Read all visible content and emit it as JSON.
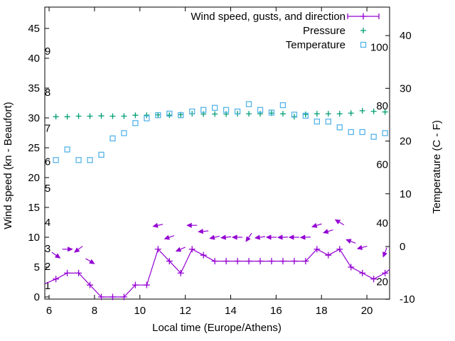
{
  "figure": {
    "background": "#ffffff",
    "axis_color": "#000000",
    "text_color": "#000000"
  },
  "chart_data": {
    "type": "line",
    "title": "",
    "xlabel": "Local time (Europe/Athens)",
    "ylabel_left": "Wind speed (kn - Beaufort)",
    "ylabel_right": "Temperature (C - F)",
    "grid": false,
    "legend_position": "top-right-inside",
    "xlim": [
      5.81,
      21.0
    ],
    "ylim_left": [
      -0.36,
      48.57
    ],
    "ylim_right": [
      -9.97,
      45.4
    ],
    "x_ticks": [
      6,
      8,
      10,
      12,
      14,
      16,
      18,
      20
    ],
    "y_ticks_left": [
      0,
      5,
      10,
      15,
      20,
      25,
      30,
      35,
      40,
      45
    ],
    "y_ticks_right": [
      -10,
      0,
      10,
      20,
      30,
      40
    ],
    "beaufort_scale_labels": [
      {
        "label": "1",
        "kn": 1.9
      },
      {
        "label": "2",
        "kn": 5.1
      },
      {
        "label": "3",
        "kn": 8.1
      },
      {
        "label": "4",
        "kn": 12.5
      },
      {
        "label": "5",
        "kn": 18.2
      },
      {
        "label": "6",
        "kn": 22.7
      },
      {
        "label": "7",
        "kn": 28.3
      },
      {
        "label": "8",
        "kn": 34.3
      },
      {
        "label": "9",
        "kn": 41.2
      }
    ],
    "fahrenheit_scale_labels": [
      {
        "label": "20",
        "f": 20
      },
      {
        "label": "40",
        "f": 40
      },
      {
        "label": "60",
        "f": 60
      },
      {
        "label": "80",
        "f": 80
      },
      {
        "label": "100",
        "f": 100
      }
    ],
    "legend": [
      {
        "label": "Wind speed, gusts, and direction",
        "color": "#9400D3",
        "sample": "errorbar"
      },
      {
        "label": "Pressure",
        "color": "#009E73",
        "sample": "plus"
      },
      {
        "label": "Temperature",
        "color": "#56B4E9",
        "sample": "square"
      }
    ],
    "series": [
      {
        "name": "Wind speed",
        "style": "line-plus",
        "color": "#9400D3",
        "axis": "left",
        "points": [
          [
            5.81,
            2.2,
            0
          ],
          [
            6.3,
            3,
            1
          ],
          [
            6.8,
            4,
            1
          ],
          [
            7.3,
            4,
            1
          ],
          [
            7.8,
            2,
            1
          ],
          [
            8.3,
            0,
            1
          ],
          [
            8.8,
            0,
            1
          ],
          [
            9.3,
            0,
            1
          ],
          [
            9.8,
            2,
            1
          ],
          [
            10.3,
            2,
            1
          ],
          [
            10.8,
            8,
            1
          ],
          [
            11.3,
            6,
            1
          ],
          [
            11.8,
            4,
            1
          ],
          [
            12.3,
            8,
            1
          ],
          [
            12.8,
            7,
            1
          ],
          [
            13.3,
            6,
            1
          ],
          [
            13.8,
            6,
            1
          ],
          [
            14.3,
            6,
            1
          ],
          [
            14.8,
            6,
            1
          ],
          [
            15.3,
            6,
            1
          ],
          [
            15.8,
            6,
            1
          ],
          [
            16.3,
            6,
            1
          ],
          [
            16.8,
            6,
            1
          ],
          [
            17.3,
            6,
            1
          ],
          [
            17.8,
            8,
            1
          ],
          [
            18.3,
            7,
            1
          ],
          [
            18.8,
            8,
            1
          ],
          [
            19.3,
            5,
            1
          ],
          [
            19.8,
            4,
            1
          ],
          [
            20.3,
            3,
            1
          ],
          [
            20.8,
            4,
            1
          ],
          [
            21.0,
            4.6,
            0
          ]
        ]
      },
      {
        "name": "Wind gusts and direction",
        "style": "vectors",
        "color": "#9400D3",
        "axis": "left",
        "points": [
          [
            6.3,
            7,
            35
          ],
          [
            6.8,
            8,
            0
          ],
          [
            7.3,
            8,
            143
          ],
          [
            7.8,
            6,
            30
          ],
          [
            10.8,
            12,
            168
          ],
          [
            11.3,
            10,
            161
          ],
          [
            11.8,
            8,
            156
          ],
          [
            12.3,
            12,
            180
          ],
          [
            12.8,
            11,
            175
          ],
          [
            13.3,
            10,
            167
          ],
          [
            13.8,
            10,
            174
          ],
          [
            14.3,
            10,
            180
          ],
          [
            14.8,
            10,
            125
          ],
          [
            15.3,
            10,
            172
          ],
          [
            15.8,
            10,
            180
          ],
          [
            16.3,
            10,
            178
          ],
          [
            16.8,
            10,
            180
          ],
          [
            17.3,
            10,
            177
          ],
          [
            17.8,
            12,
            163
          ],
          [
            18.3,
            11,
            163
          ],
          [
            18.8,
            12.5,
            211
          ],
          [
            19.3,
            9.3,
            201
          ],
          [
            19.8,
            8.3,
            166
          ],
          [
            20.8,
            7.5,
            111
          ]
        ]
      },
      {
        "name": "Pressure",
        "style": "plus",
        "color": "#009E73",
        "axis": "left",
        "points": [
          [
            6.3,
            30.2
          ],
          [
            6.8,
            30.2
          ],
          [
            7.3,
            30.3
          ],
          [
            7.8,
            30.3
          ],
          [
            8.3,
            30.35
          ],
          [
            8.8,
            30.3
          ],
          [
            9.3,
            30.3
          ],
          [
            9.8,
            30.45
          ],
          [
            10.3,
            30.45
          ],
          [
            10.8,
            30.5
          ],
          [
            11.3,
            30.45
          ],
          [
            11.8,
            30.55
          ],
          [
            12.3,
            30.7
          ],
          [
            12.8,
            30.65
          ],
          [
            13.3,
            30.65
          ],
          [
            13.8,
            30.65
          ],
          [
            14.3,
            30.7
          ],
          [
            14.8,
            30.7
          ],
          [
            15.3,
            30.7
          ],
          [
            15.8,
            30.8
          ],
          [
            16.3,
            30.7
          ],
          [
            16.8,
            30.2
          ],
          [
            17.3,
            30.6
          ],
          [
            17.8,
            30.7
          ],
          [
            18.3,
            30.7
          ],
          [
            18.8,
            30.7
          ],
          [
            19.3,
            30.8
          ],
          [
            19.8,
            31.2
          ],
          [
            20.3,
            31.1
          ],
          [
            20.8,
            31.0
          ]
        ]
      },
      {
        "name": "Temperature",
        "style": "open-square",
        "color": "#56B4E9",
        "axis": "right",
        "points": [
          [
            6.3,
            16.4
          ],
          [
            6.8,
            18.4
          ],
          [
            7.3,
            16.4
          ],
          [
            7.8,
            16.4
          ],
          [
            8.3,
            17.4
          ],
          [
            8.8,
            20.5
          ],
          [
            9.3,
            21.5
          ],
          [
            9.8,
            23.4
          ],
          [
            10.3,
            24.3
          ],
          [
            10.8,
            24.9
          ],
          [
            11.3,
            25.2
          ],
          [
            11.8,
            24.9
          ],
          [
            12.3,
            25.6
          ],
          [
            12.8,
            25.9
          ],
          [
            13.3,
            26.3
          ],
          [
            13.8,
            25.9
          ],
          [
            14.3,
            25.6
          ],
          [
            14.8,
            27.0
          ],
          [
            15.3,
            25.9
          ],
          [
            15.8,
            25.4
          ],
          [
            16.3,
            26.8
          ],
          [
            16.8,
            25.0
          ],
          [
            17.3,
            24.8
          ],
          [
            17.8,
            23.7
          ],
          [
            18.3,
            23.7
          ],
          [
            18.8,
            22.6
          ],
          [
            19.3,
            21.7
          ],
          [
            19.8,
            21.7
          ],
          [
            20.3,
            20.8
          ],
          [
            20.8,
            21.5
          ]
        ]
      }
    ]
  }
}
